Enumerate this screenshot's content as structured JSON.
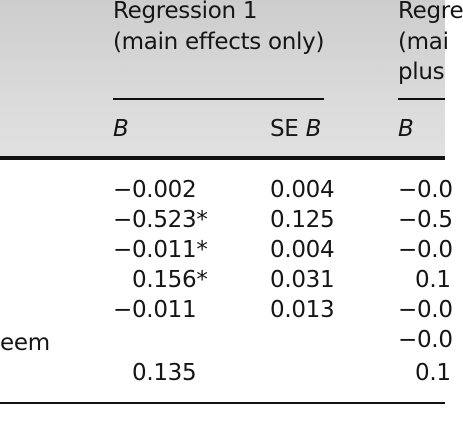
{
  "table": {
    "columns": {
      "reg1": {
        "title_line1": "Regression 1",
        "title_line2": "(main effects only)"
      },
      "reg2": {
        "title_line1": "Regre",
        "title_line2": "(mai",
        "title_line3": "plus"
      }
    },
    "subheaders": {
      "b": "B",
      "se_b_prefix": "SE",
      "se_b_var": "B",
      "b2": "B"
    },
    "row_label_fragment": "eem",
    "rows": [
      {
        "b": "−0.002",
        "se": "0.004",
        "b2": "−0.0"
      },
      {
        "b": "−0.523*",
        "se": "0.125",
        "b2": "−0.5"
      },
      {
        "b": "−0.011*",
        "se": "0.004",
        "b2": "−0.0"
      },
      {
        "b": "0.156*",
        "se": "0.031",
        "b2": "0.1"
      },
      {
        "b": "−0.011",
        "se": "0.013",
        "b2": "−0.0"
      },
      {
        "b": "",
        "se": "",
        "b2": "−0.0"
      },
      {
        "b": "0.135",
        "se": "",
        "b2": "0.1"
      }
    ]
  }
}
